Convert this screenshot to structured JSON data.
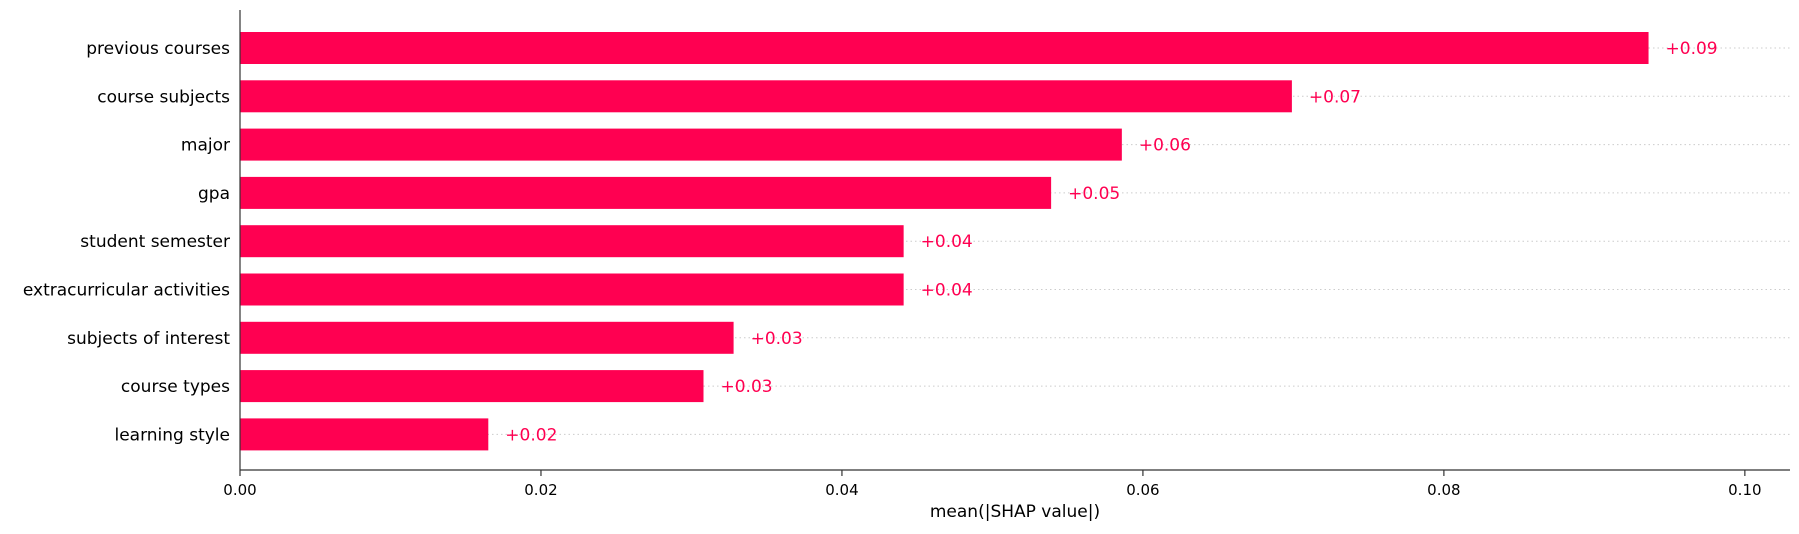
{
  "chart_data": {
    "type": "bar",
    "orientation": "horizontal",
    "categories": [
      "previous courses",
      "course subjects",
      "major",
      "gpa",
      "student semester",
      "extracurricular activities",
      "subjects of interest",
      "course types",
      "learning style"
    ],
    "values": [
      0.0936,
      0.0699,
      0.0586,
      0.0539,
      0.0441,
      0.0441,
      0.0328,
      0.0308,
      0.0165
    ],
    "data_labels": [
      "+0.09",
      "+0.07",
      "+0.06",
      "+0.05",
      "+0.04",
      "+0.04",
      "+0.03",
      "+0.03",
      "+0.02"
    ],
    "xlabel": "mean(|SHAP value|)",
    "ylabel": "",
    "title": "",
    "xlim": [
      0,
      0.103
    ],
    "x_ticks": [
      0.0,
      0.02,
      0.04,
      0.06,
      0.08,
      0.1
    ],
    "x_tick_labels": [
      "0.00",
      "0.02",
      "0.04",
      "0.06",
      "0.08",
      "0.10"
    ],
    "grid": "dotted horizontal guides per row",
    "legend": "none",
    "colors": {
      "bar": "#ff0051",
      "label": "#ff0051",
      "axis": "#333333",
      "text": "#000000",
      "guide": "#cccccc"
    }
  }
}
